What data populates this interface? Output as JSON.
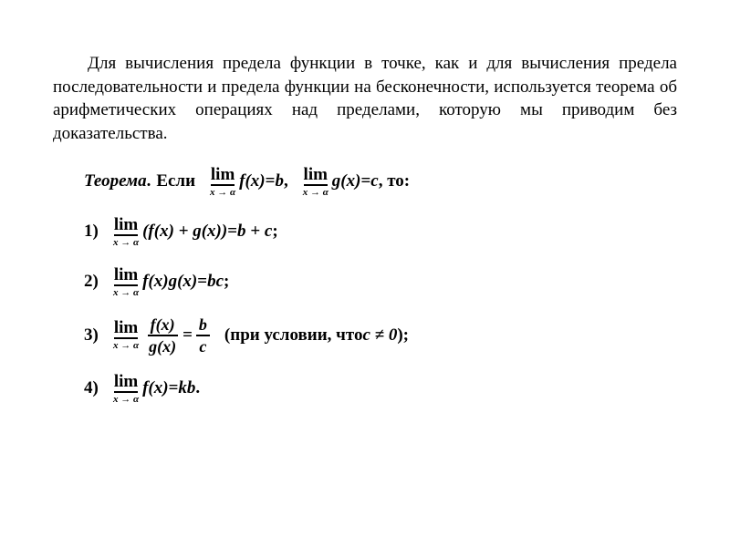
{
  "text_color": "#000000",
  "background_color": "#ffffff",
  "font_family": "Times New Roman",
  "intro": "Для вычисления предела функции в точке, как и для вычис­ления предела последовательности и предела функции на беско­нечности, используется теорема об арифметических операциях над пределами, которую мы приводим без доказательства.",
  "theorem_label": "Теорема",
  "period": ".",
  "if_word": "Если",
  "then_word": ", то:",
  "lim_word": "lim",
  "sub": "x → α",
  "fx": "f(x)",
  "gx": "g(x)",
  "eq": " = ",
  "b": "b",
  "c": "c",
  "comma_sep": ",",
  "items": {
    "1": {
      "num": "1)",
      "expr": "(f(x) + g(x))",
      "rhs": "b + c",
      "tail": ";"
    },
    "2": {
      "num": "2)",
      "expr": "f(x)g(x)",
      "rhs": "bc",
      "tail": ";"
    },
    "3": {
      "num": "3)",
      "cond": "(при условии, что ",
      "cond2": "c ≠ 0",
      "cond3": ");"
    },
    "4": {
      "num": "4)",
      "expr": "f(x)",
      "rhs": "kb",
      "tail": "."
    }
  }
}
